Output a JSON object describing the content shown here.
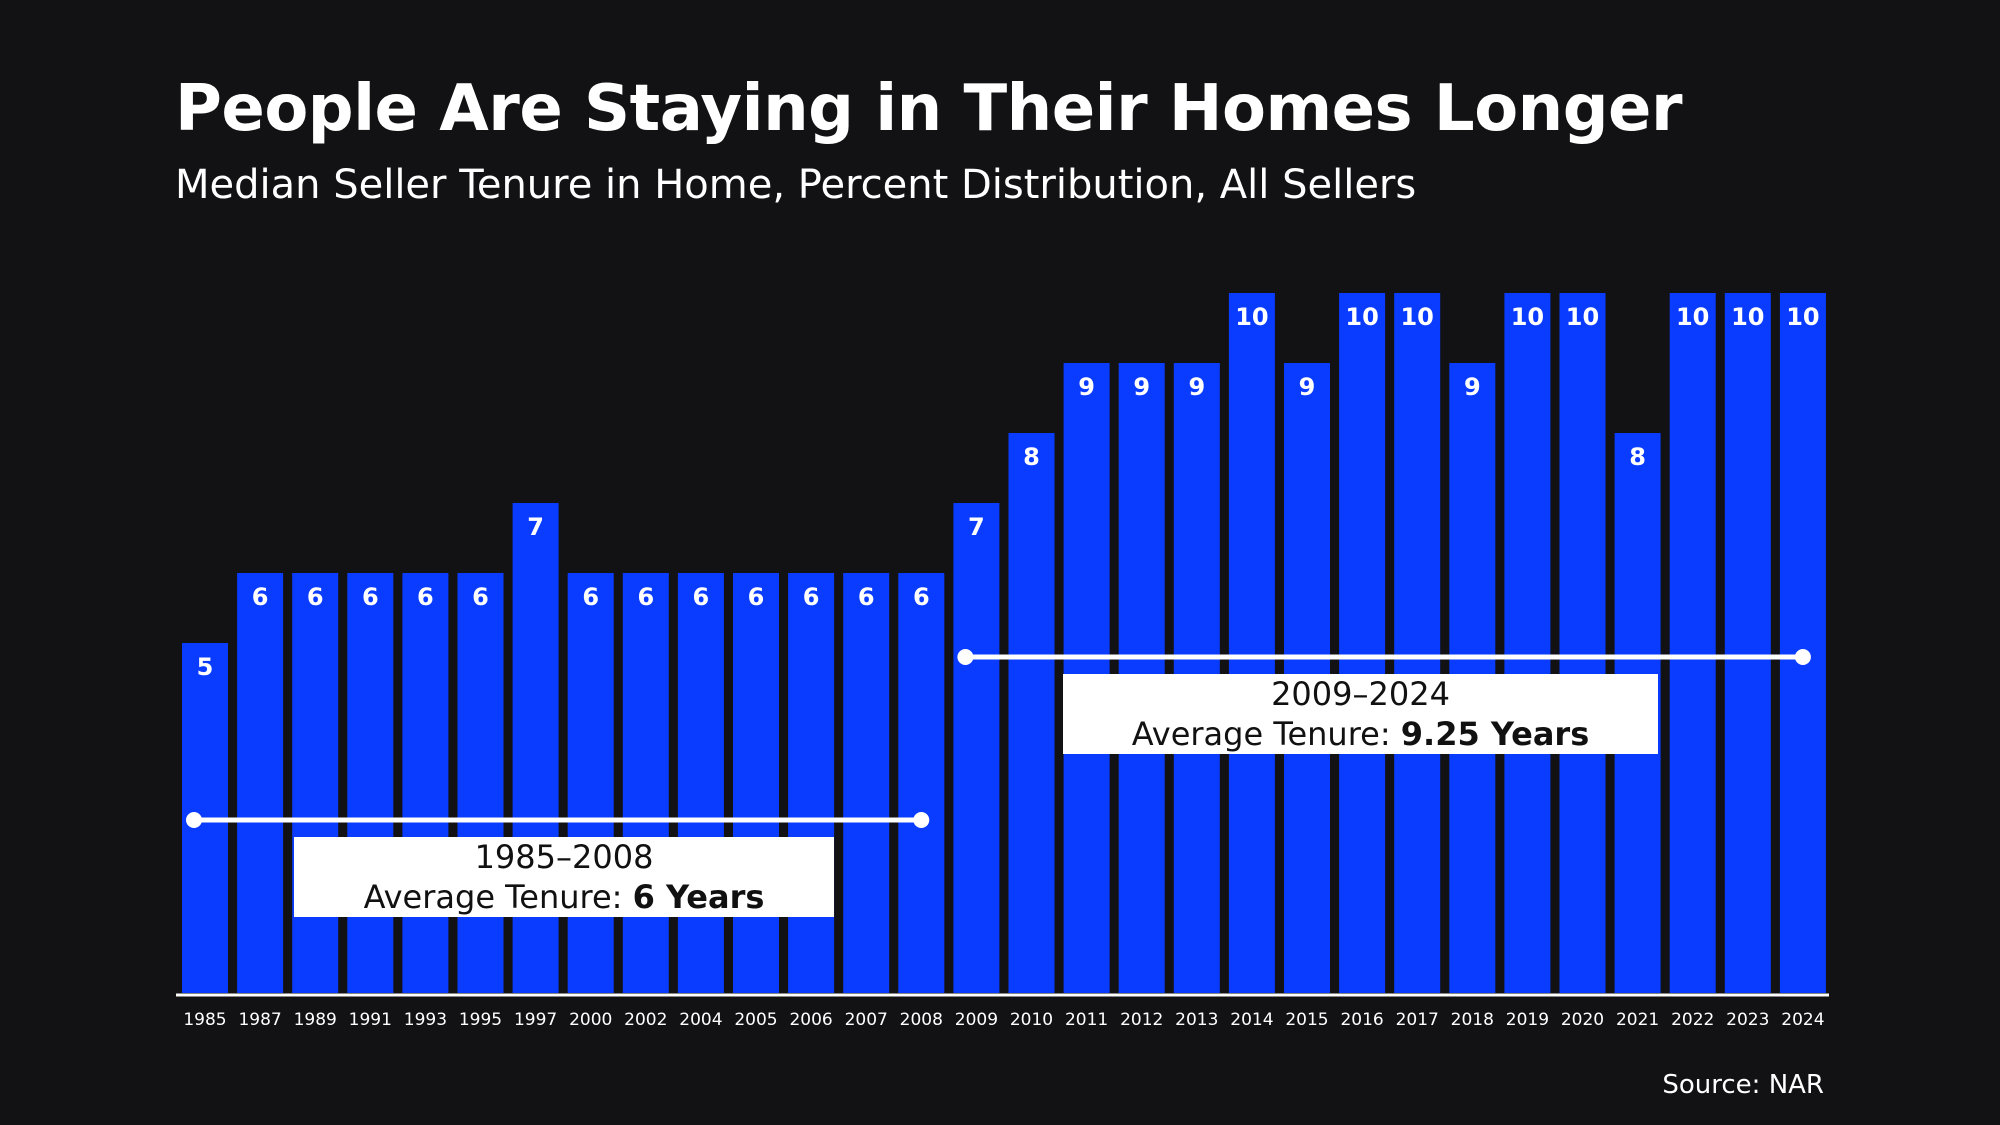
{
  "title": "People Are Staying in Their Homes Longer",
  "subtitle": "Median Seller Tenure in Home, Percent Distribution, All Sellers",
  "source": "Source: NAR",
  "colors": {
    "background": "#121214",
    "bar": "#0a3cff",
    "text": "#ffffff",
    "box": "#ffffff",
    "box_text": "#111111"
  },
  "annotations": {
    "period1": {
      "range": "1985–2008",
      "prefix": "Average Tenure: ",
      "value": "6 Years"
    },
    "period2": {
      "range": "2009–2024",
      "prefix": "Average Tenure: ",
      "value": "9.25 Years"
    }
  },
  "chart_data": {
    "type": "bar",
    "title": "People Are Staying in Their Homes Longer",
    "subtitle": "Median Seller Tenure in Home, Percent Distribution, All Sellers",
    "xlabel": "",
    "ylabel": "",
    "ylim": [
      0,
      10
    ],
    "grid": false,
    "categories": [
      "1985",
      "1987",
      "1989",
      "1991",
      "1993",
      "1995",
      "1997",
      "2000",
      "2002",
      "2004",
      "2005",
      "2006",
      "2007",
      "2008",
      "2009",
      "2010",
      "2011",
      "2012",
      "2013",
      "2014",
      "2015",
      "2016",
      "2017",
      "2018",
      "2019",
      "2020",
      "2021",
      "2022",
      "2023",
      "2024"
    ],
    "values": [
      5,
      6,
      6,
      6,
      6,
      6,
      7,
      6,
      6,
      6,
      6,
      6,
      6,
      6,
      7,
      8,
      9,
      9,
      9,
      10,
      9,
      10,
      10,
      9,
      10,
      10,
      8,
      10,
      10,
      10
    ],
    "averages": [
      {
        "from": "1985",
        "to": "2008",
        "value": 6
      },
      {
        "from": "2009",
        "to": "2024",
        "value": 9.25
      }
    ]
  }
}
